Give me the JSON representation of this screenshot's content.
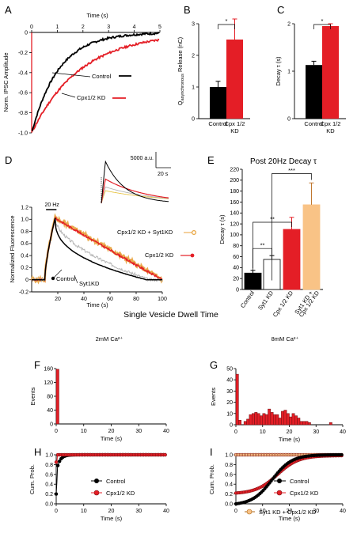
{
  "labels": {
    "A": "A",
    "B": "B",
    "C": "C",
    "D": "D",
    "E": "E",
    "F": "F",
    "G": "G",
    "H": "H",
    "I": "I"
  },
  "section_title": "Single Vesicle Dwell Time",
  "colors": {
    "control": "#000000",
    "cpx": "#e41e26",
    "syt1": "#b4b4b4",
    "syt1cpx": "#e8a23a",
    "light_orange": "#f9c386",
    "yellow": "#e8c547"
  },
  "chart_data": [
    {
      "id": "A",
      "type": "line",
      "xlabel": "Time (s)",
      "ylabel": "Norm. IPSC Amplitude",
      "xlim": [
        0,
        5
      ],
      "ylim": [
        -1.0,
        0
      ],
      "xticks": [
        "0",
        "1",
        "2",
        "3",
        "4",
        "5"
      ],
      "yticks": [
        "-1.0",
        "-0.8",
        "-0.6",
        "-0.4",
        "-0.2",
        "0"
      ],
      "series": [
        {
          "name": "Control",
          "tau": 1.05,
          "color": "#000000"
        },
        {
          "name": "Cpx1/2 KD",
          "tau": 1.9,
          "color": "#e41e26"
        }
      ]
    },
    {
      "id": "B",
      "type": "bar",
      "ylabel": "Q_asynchronous Release (nC)",
      "ylabel_main": "Q",
      "ylabel_sub": "asynchronous",
      "ylabel_rest": " Release (nC)",
      "ylim": [
        0,
        3
      ],
      "yticks": [
        "0",
        "1",
        "2",
        "3"
      ],
      "categories": [
        "Control",
        "Cpx 1/2 KD"
      ],
      "cat_lines": [
        [
          "Control"
        ],
        [
          "Cpx 1/2",
          "KD"
        ]
      ],
      "values": [
        1.0,
        2.5
      ],
      "errors": [
        0.18,
        0.65
      ],
      "significance": "*"
    },
    {
      "id": "C",
      "type": "bar",
      "ylabel": "Decay τ (s)",
      "ylim": [
        0,
        2
      ],
      "yticks": [
        "0",
        "1",
        "2"
      ],
      "categories": [
        "Control",
        "Cpx 1/2 KD"
      ],
      "cat_lines": [
        [
          "Control"
        ],
        [
          "Cpx 1/2",
          "KD"
        ]
      ],
      "values": [
        1.13,
        1.95
      ],
      "errors": [
        0.08,
        0.05
      ],
      "significance": "*"
    },
    {
      "id": "D",
      "type": "line",
      "xlabel": "Time (s)",
      "ylabel": "Normalized Fluorescence",
      "xlim": [
        0,
        100
      ],
      "ylim": [
        -0.2,
        1.2
      ],
      "xticks": [
        "20",
        "40",
        "60",
        "80",
        "100"
      ],
      "yticks": [
        "-0.2",
        "0",
        "0.2",
        "0.4",
        "0.6",
        "0.8",
        "1.0",
        "1.2"
      ],
      "stim_label": "20 Hz",
      "inset_scale_y": "5000 a.u.",
      "inset_scale_x": "20 s",
      "series": [
        {
          "name": "Control",
          "decay_end": 97,
          "color": "#000000"
        },
        {
          "name": "Syt1KD",
          "decay_end": 97,
          "color": "#b4b4b4"
        },
        {
          "name": "Cpx1/2 KD",
          "decay_end": 100,
          "color": "#e41e26"
        },
        {
          "name": "Cpx1/2 KD + Syt1KD",
          "decay_end": 100,
          "color": "#e8a23a"
        }
      ]
    },
    {
      "id": "E",
      "type": "bar",
      "title": "Post 20Hz Decay τ",
      "ylabel": "Decay τ (s)",
      "ylim": [
        0,
        220
      ],
      "yticks": [
        "0",
        "20",
        "40",
        "60",
        "80",
        "100",
        "120",
        "140",
        "160",
        "180",
        "200",
        "220"
      ],
      "categories": [
        "Control",
        "Syt1 KD",
        "Cpx 1/2 KD",
        "Syt1 KD + Cpx 1/2 KD"
      ],
      "cat_lines": [
        [
          "Control"
        ],
        [
          "Syt1 KD"
        ],
        [
          "Cpx 1/2 KD"
        ],
        [
          "Syt1 KD +",
          "Cpx 1/2 KD"
        ]
      ],
      "values": [
        30,
        55,
        110,
        155
      ],
      "errors": [
        5,
        7,
        22,
        40
      ],
      "bar_colors": [
        "#000000",
        "#ffffff",
        "#e41e26",
        "#f9c386"
      ],
      "significance": [
        "**",
        "**",
        "**",
        "***"
      ]
    },
    {
      "id": "F",
      "type": "bar",
      "title": "2mM Ca²⁺",
      "xlabel": "Time (s)",
      "ylabel": "Events",
      "xlim": [
        0,
        40
      ],
      "ylim": [
        0,
        160
      ],
      "xticks": [
        "0",
        "10",
        "20",
        "30",
        "40"
      ],
      "yticks": [
        "0",
        "40",
        "80",
        "120",
        "160"
      ],
      "bins": [
        [
          0,
          158
        ]
      ]
    },
    {
      "id": "G",
      "type": "bar",
      "title": "8mM Ca²⁺",
      "xlabel": "Time (s)",
      "ylabel": "Events",
      "xlim": [
        0,
        40
      ],
      "ylim": [
        0,
        50
      ],
      "xticks": [
        "0",
        "10",
        "20",
        "30",
        "40"
      ],
      "yticks": [
        "0",
        "10",
        "20",
        "30",
        "40",
        "50"
      ],
      "bins": [
        [
          0,
          45
        ],
        [
          1,
          4
        ],
        [
          3,
          3
        ],
        [
          4,
          5
        ],
        [
          5,
          9
        ],
        [
          6,
          10
        ],
        [
          7,
          11
        ],
        [
          8,
          10
        ],
        [
          9,
          8
        ],
        [
          10,
          10
        ],
        [
          11,
          9
        ],
        [
          12,
          14
        ],
        [
          13,
          11
        ],
        [
          14,
          9
        ],
        [
          15,
          9
        ],
        [
          16,
          6
        ],
        [
          17,
          12
        ],
        [
          18,
          13
        ],
        [
          19,
          10
        ],
        [
          20,
          7
        ],
        [
          21,
          10
        ],
        [
          22,
          8
        ],
        [
          23,
          6
        ],
        [
          24,
          3
        ],
        [
          25,
          3
        ],
        [
          26,
          3
        ],
        [
          27,
          2
        ],
        [
          35,
          2
        ]
      ]
    },
    {
      "id": "H",
      "type": "line",
      "xlabel": "Time (s)",
      "ylabel": "Cum. Prob.",
      "xlim": [
        0,
        40
      ],
      "ylim": [
        0,
        1.0
      ],
      "xticks": [
        "0",
        "10",
        "20",
        "30",
        "40"
      ],
      "yticks": [
        "0.0",
        "0.2",
        "0.4",
        "0.6",
        "0.8",
        "1.0"
      ],
      "series": [
        {
          "name": "Control",
          "color": "#000000"
        },
        {
          "name": "Cpx1/2 KD",
          "color": "#e41e26"
        }
      ]
    },
    {
      "id": "I",
      "type": "line",
      "xlabel": "Time (s)",
      "ylabel": "Cum. Prob.",
      "xlim": [
        0,
        40
      ],
      "ylim": [
        0,
        1.0
      ],
      "xticks": [
        "0",
        "10",
        "20",
        "30",
        "40"
      ],
      "yticks": [
        "0.0",
        "0.2",
        "0.4",
        "0.6",
        "0.8",
        "1.0"
      ],
      "series": [
        {
          "name": "Control",
          "color": "#000000"
        },
        {
          "name": "Cpx1/2 KD",
          "color": "#e41e26"
        },
        {
          "name": "Syt1 KD + Cpx1/2 KD",
          "color": "#f9c386"
        }
      ]
    }
  ]
}
